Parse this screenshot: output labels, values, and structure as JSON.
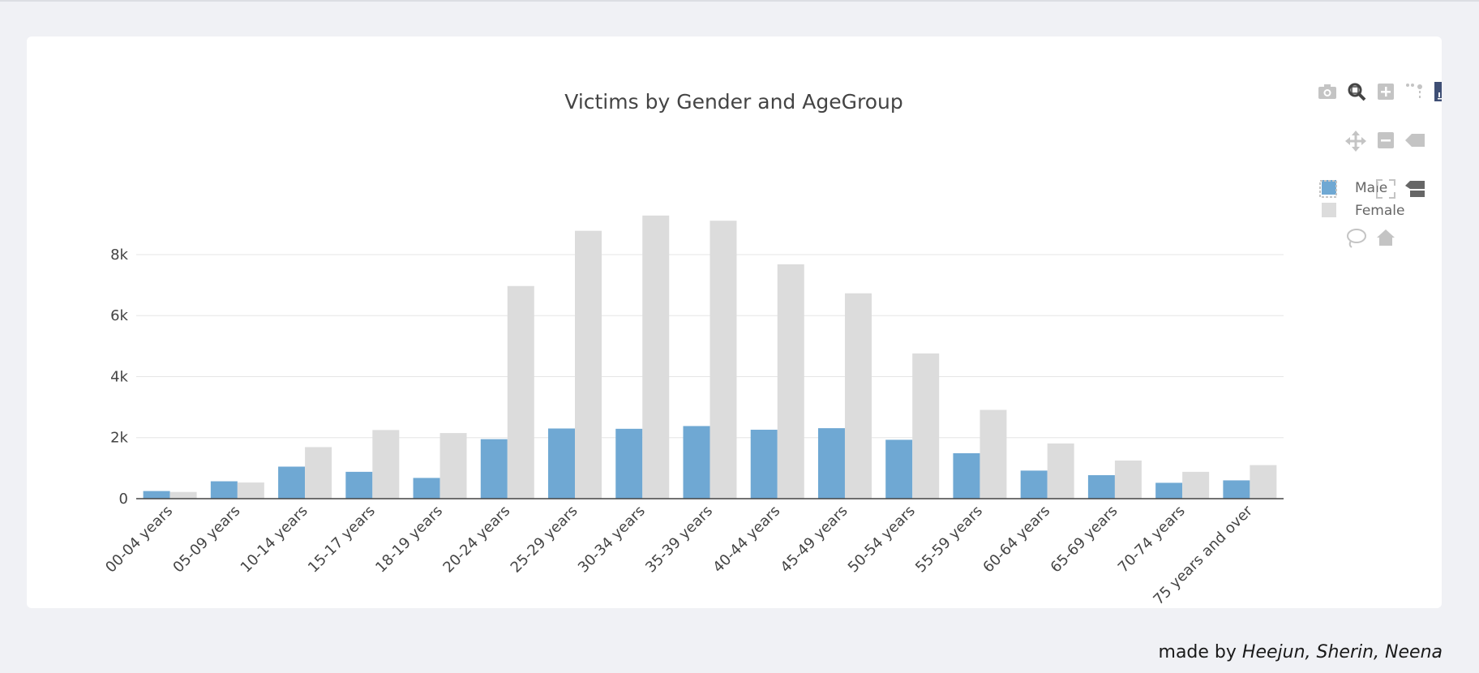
{
  "chart_data": {
    "type": "bar",
    "title": "Victims by Gender and AgeGroup",
    "xlabel": "",
    "ylabel": "",
    "categories": [
      "00-04 years",
      "05-09 years",
      "10-14 years",
      "15-17 years",
      "18-19 years",
      "20-24 years",
      "25-29 years",
      "30-34 years",
      "35-39 years",
      "40-44 years",
      "45-49 years",
      "50-54 years",
      "55-59 years",
      "60-64 years",
      "65-69 years",
      "70-74 years",
      "75 years and over"
    ],
    "series": [
      {
        "name": "Male",
        "color": "#6fa8d3",
        "values": [
          250,
          570,
          1050,
          880,
          680,
          1950,
          2300,
          2290,
          2380,
          2260,
          2310,
          1930,
          1490,
          920,
          770,
          520,
          600
        ]
      },
      {
        "name": "Female",
        "color": "#dcdcdc",
        "values": [
          220,
          530,
          1690,
          2250,
          2150,
          6970,
          8780,
          9280,
          9110,
          7680,
          6730,
          4760,
          2910,
          1810,
          1250,
          880,
          1100
        ]
      }
    ],
    "yticks": [
      {
        "value": 0,
        "label": "0"
      },
      {
        "value": 2000,
        "label": "2k"
      },
      {
        "value": 4000,
        "label": "4k"
      },
      {
        "value": 6000,
        "label": "6k"
      },
      {
        "value": 8000,
        "label": "8k"
      }
    ],
    "ylim": [
      0,
      9700
    ],
    "grid": true,
    "legend": "top-right"
  },
  "modebar": {
    "row1": [
      "camera-icon",
      "zoom-icon",
      "zoom-in-icon",
      "spike-lines-icon",
      "plotly-logo-icon"
    ],
    "row2": [
      "pan-icon",
      "zoom-out-icon",
      "hover-closest-icon"
    ],
    "row3": [
      "box-select-icon",
      "autoscale-icon",
      "hover-compare-icon"
    ],
    "row4": [
      "lasso-select-icon",
      "reset-axes-icon"
    ]
  },
  "footer": {
    "prefix": "made by",
    "authors": "Heejun, Sherin, Neena"
  }
}
